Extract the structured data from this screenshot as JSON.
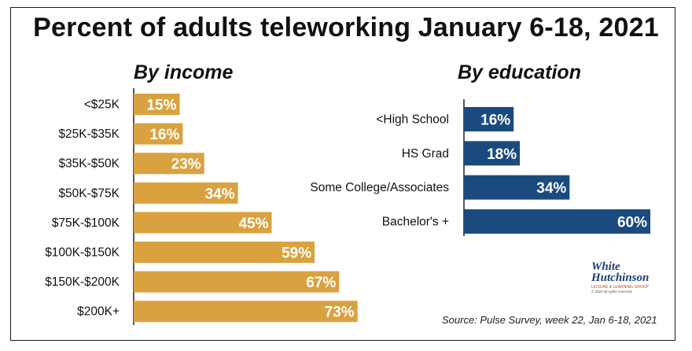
{
  "title": "Percent of adults teleworking January 6-18, 2021",
  "colors": {
    "income_bar": "#D9A23F",
    "education_bar": "#1B4A7E"
  },
  "chart_data": [
    {
      "type": "bar",
      "orientation": "horizontal",
      "title": "By income",
      "categories": [
        "<$25K",
        "$25K-$35K",
        "$35K-$50K",
        "$50K-$75K",
        "$75K-$100K",
        "$100K-$150K",
        "$150K-$200K",
        "$200K+"
      ],
      "values": [
        15,
        16,
        23,
        34,
        45,
        59,
        67,
        73
      ],
      "value_labels": [
        "15%",
        "16%",
        "23%",
        "34%",
        "45%",
        "59%",
        "67%",
        "73%"
      ],
      "xlim": [
        0,
        100
      ],
      "grid": false
    },
    {
      "type": "bar",
      "orientation": "horizontal",
      "title": "By education",
      "categories": [
        "<High School",
        "HS Grad",
        "Some College/Associates",
        "Bachelor's +"
      ],
      "values": [
        16,
        18,
        34,
        60
      ],
      "value_labels": [
        "16%",
        "18%",
        "34%",
        "60%"
      ],
      "xlim": [
        0,
        100
      ],
      "grid": false
    }
  ],
  "source": "Source: Pulse Survey, week 22, Jan 6-18, 2021",
  "logo": {
    "line1": "White",
    "line2": "Hutchinson",
    "tagline": "LEISURE & LEARNING GROUP",
    "copyright": "© 2020 all rights reserved"
  }
}
